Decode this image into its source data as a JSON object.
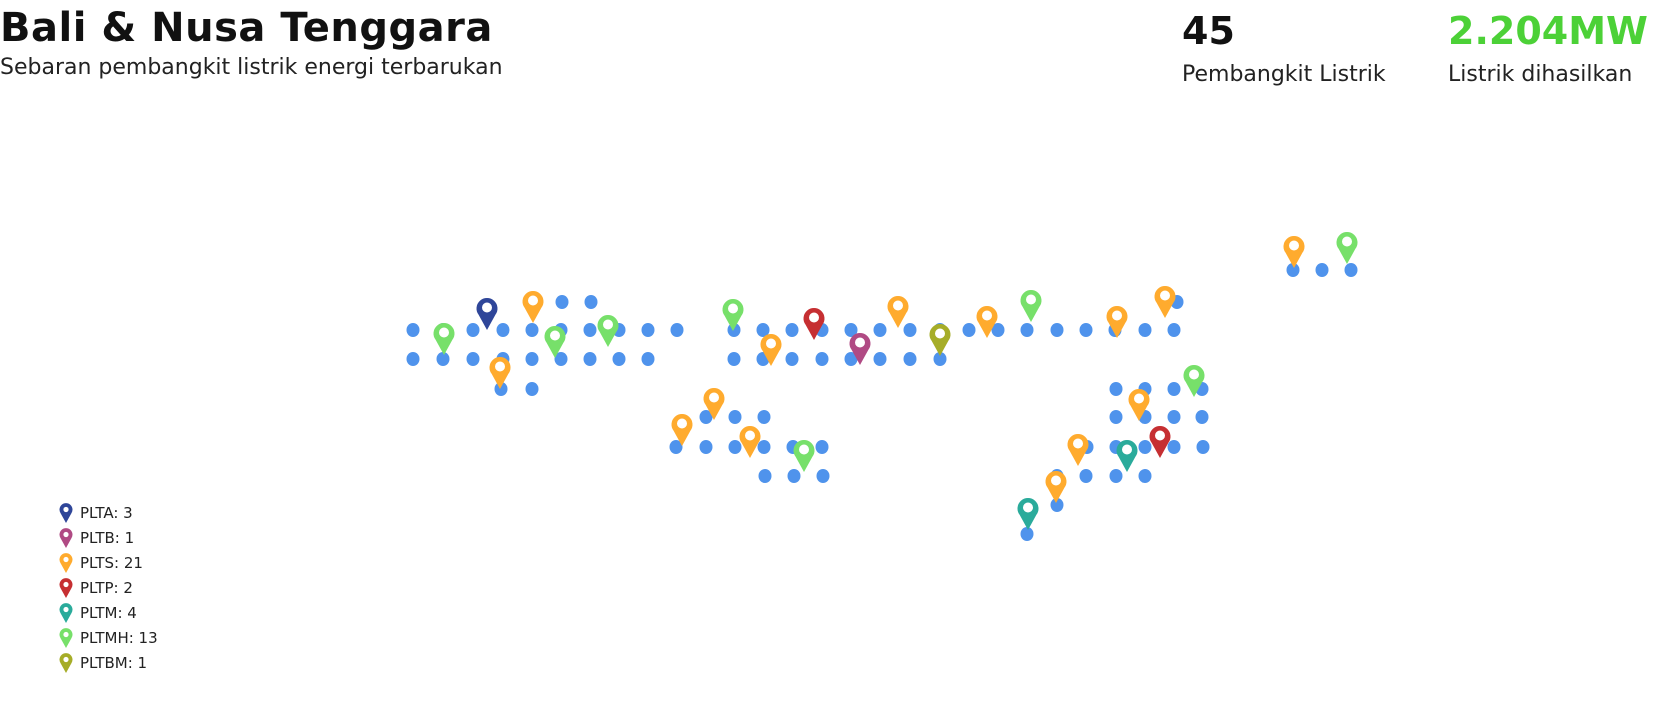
{
  "header": {
    "title": "Bali & Nusa Tenggara",
    "subtitle": "Sebaran pembangkit listrik energi terbarukan"
  },
  "stats": {
    "plant_count": {
      "value": "45",
      "label": "Pembangkit Listrik"
    },
    "power": {
      "value": "2.204MW",
      "label": "Listrik dihasilkan",
      "color": "#4cd137"
    }
  },
  "legend": [
    {
      "type": "PLTA",
      "count": "3",
      "text": "PLTA: 3",
      "color": "#2f4699"
    },
    {
      "type": "PLTB",
      "count": "1",
      "text": "PLTB: 1",
      "color": "#b04a84"
    },
    {
      "type": "PLTS",
      "count": "21",
      "text": "PLTS: 21",
      "color": "#ffab2e"
    },
    {
      "type": "PLTP",
      "count": "2",
      "text": "PLTP: 2",
      "color": "#c62f32"
    },
    {
      "type": "PLTM",
      "count": "4",
      "text": "PLTM: 4",
      "color": "#2aab9b"
    },
    {
      "type": "PLTMH",
      "count": "13",
      "text": "PLTMH: 13",
      "color": "#77e06a"
    },
    {
      "type": "PLTBM",
      "count": "1",
      "text": "PLTBM: 1",
      "color": "#a6ad28"
    }
  ],
  "map": {
    "land_color": "#4f93ec",
    "marker_icon": "map-pin-icon"
  }
}
